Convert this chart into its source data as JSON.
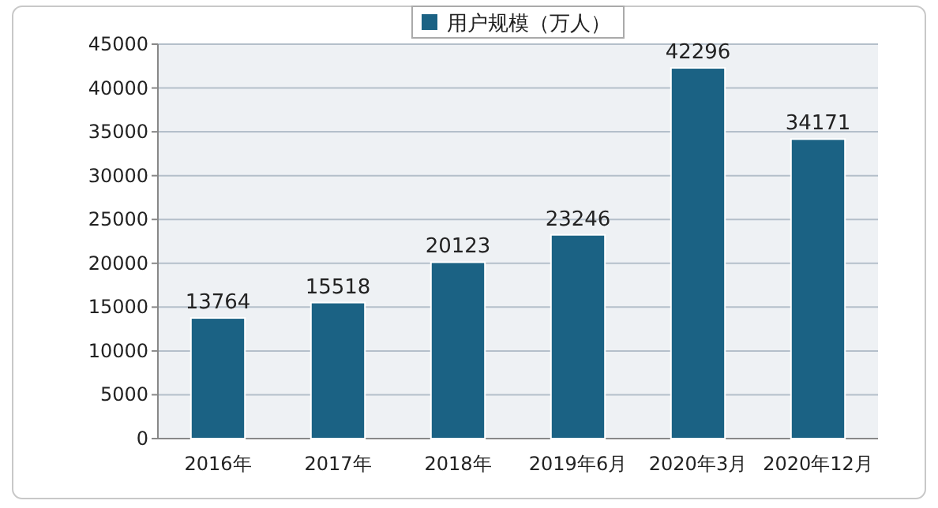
{
  "chart_data": {
    "type": "bar",
    "categories": [
      "2016年",
      "2017年",
      "2018年",
      "2019年6月",
      "2020年3月",
      "2020年12月"
    ],
    "series": [
      {
        "name": "用户规模（万人）",
        "color": "#1b6284",
        "values": [
          13764,
          15518,
          20123,
          23246,
          42296,
          34171
        ]
      }
    ],
    "ylim": [
      0,
      45000
    ],
    "yticks": [
      0,
      5000,
      10000,
      15000,
      20000,
      25000,
      30000,
      35000,
      40000,
      45000
    ],
    "grid": "y",
    "legend": "top",
    "data_labels": true
  }
}
